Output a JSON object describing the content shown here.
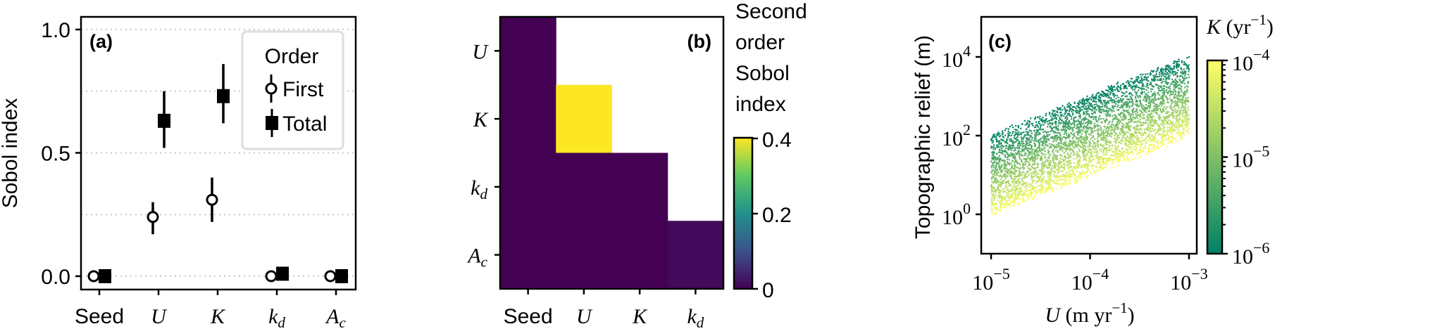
{
  "chart_data": [
    {
      "type": "scatter",
      "panel_label": "(a)",
      "ylabel": "Sobol index",
      "ylim": [
        -0.05,
        1.05
      ],
      "yticks": [
        "0.0",
        "0.5",
        "1.0"
      ],
      "ytick_values": [
        0,
        0.5,
        1.0
      ],
      "grid_values": [
        0,
        0.25,
        0.5,
        0.75,
        1.0
      ],
      "grid": "horizontal dotted",
      "categories": [
        {
          "base": "Seed",
          "sub": "",
          "math": false
        },
        {
          "base": "U",
          "sub": "",
          "math": true
        },
        {
          "base": "K",
          "sub": "",
          "math": true
        },
        {
          "base": "k",
          "sub": "d",
          "math": true
        },
        {
          "base": "A",
          "sub": "c",
          "math": true
        }
      ],
      "legend": {
        "title": "Order",
        "placement": "top-right"
      },
      "series": [
        {
          "name": "First",
          "marker": "open-circle",
          "values": [
            0.0,
            0.24,
            0.31,
            0.0,
            0.0
          ],
          "err_low": [
            0.0,
            0.17,
            0.22,
            0.0,
            0.0
          ],
          "err_high": [
            0.0,
            0.3,
            0.4,
            0.0,
            0.0
          ]
        },
        {
          "name": "Total",
          "marker": "filled-square",
          "values": [
            0.0,
            0.63,
            0.73,
            0.01,
            0.0
          ],
          "err_low": [
            0.0,
            0.52,
            0.62,
            0.01,
            0.0
          ],
          "err_high": [
            0.0,
            0.75,
            0.86,
            0.01,
            0.0
          ]
        }
      ]
    },
    {
      "type": "heatmap",
      "panel_label": "(b)",
      "colorbar_title": [
        "Second",
        "order",
        "Sobol",
        "index"
      ],
      "colormap": "viridis",
      "colormap_stops": [
        "#440154",
        "#3b528b",
        "#21918c",
        "#5ec962",
        "#fde725"
      ],
      "clim": [
        0,
        0.4
      ],
      "colorbar_ticks": [
        "0",
        "0.2",
        "0.4"
      ],
      "colorbar_tick_values": [
        0,
        0.2,
        0.4
      ],
      "x_categories": [
        {
          "base": "Seed",
          "sub": "",
          "math": false
        },
        {
          "base": "U",
          "sub": "",
          "math": true
        },
        {
          "base": "K",
          "sub": "",
          "math": true
        },
        {
          "base": "k",
          "sub": "d",
          "math": true
        }
      ],
      "y_categories": [
        {
          "base": "U",
          "sub": "",
          "math": true
        },
        {
          "base": "K",
          "sub": "",
          "math": true
        },
        {
          "base": "k",
          "sub": "d",
          "math": true
        },
        {
          "base": "A",
          "sub": "c",
          "math": true
        }
      ],
      "values": [
        [
          0.0,
          null,
          null,
          null
        ],
        [
          0.0,
          0.4,
          null,
          null
        ],
        [
          0.0,
          0.0,
          0.0,
          null
        ],
        [
          0.0,
          0.0,
          0.0,
          0.01
        ]
      ]
    },
    {
      "type": "scatter",
      "panel_label": "(c)",
      "xlabel": {
        "var": "U",
        "unit": "(m yr",
        "exp": "−1",
        "close": ")"
      },
      "ylabel": "Topographic relief (m)",
      "xscale": "log",
      "yscale": "log",
      "xlim": [
        8e-06,
        0.0012
      ],
      "ylim": [
        0.1,
        100000
      ],
      "xticks": [
        {
          "base": "10",
          "exp": "−5",
          "value": 1e-05
        },
        {
          "base": "10",
          "exp": "−4",
          "value": 0.0001
        },
        {
          "base": "10",
          "exp": "−3",
          "value": 0.001
        }
      ],
      "yticks": [
        {
          "base": "10",
          "exp": "0",
          "value": 1
        },
        {
          "base": "10",
          "exp": "2",
          "value": 100
        },
        {
          "base": "10",
          "exp": "4",
          "value": 10000
        }
      ],
      "color_variable": {
        "var": "K",
        "unit": "(yr",
        "exp": "−1",
        "close": ")"
      },
      "colormap": "summer_r",
      "colormap_stops": [
        "#008066",
        "#ffff66"
      ],
      "color_scale": "log",
      "clim": [
        1e-06,
        0.0001
      ],
      "colorbar_ticks": [
        {
          "base": "10",
          "exp": "−6",
          "value": 1e-06
        },
        {
          "base": "10",
          "exp": "−5",
          "value": 1e-05
        },
        {
          "base": "10",
          "exp": "−4",
          "value": 0.0001
        }
      ],
      "x_range": [
        1e-05,
        0.001
      ],
      "representative_points": [
        {
          "U": 1e-05,
          "K": 1e-06,
          "relief": 100
        },
        {
          "U": 1e-05,
          "K": 1e-05,
          "relief": 10
        },
        {
          "U": 1e-05,
          "K": 0.0001,
          "relief": 1
        },
        {
          "U": 0.0001,
          "K": 1e-06,
          "relief": 1000
        },
        {
          "U": 0.0001,
          "K": 1e-05,
          "relief": 100
        },
        {
          "U": 0.0001,
          "K": 0.0001,
          "relief": 10
        },
        {
          "U": 0.001,
          "K": 1e-06,
          "relief": 10000
        },
        {
          "U": 0.001,
          "K": 1e-05,
          "relief": 1000
        },
        {
          "U": 0.001,
          "K": 0.0001,
          "relief": 100
        }
      ]
    }
  ]
}
